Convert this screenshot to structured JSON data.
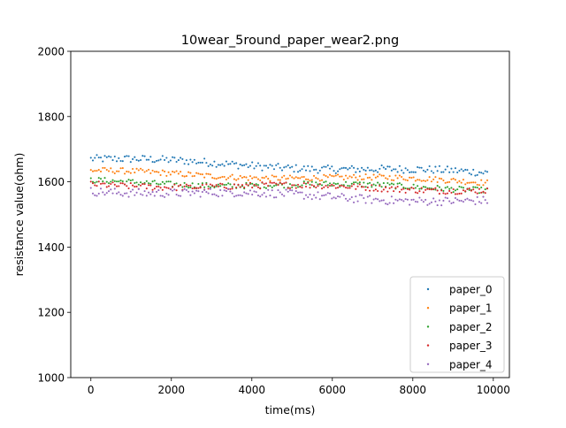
{
  "chart_data": {
    "type": "scatter",
    "title": "10wear_5round_paper_wear2.png",
    "xlabel": "time(ms)",
    "ylabel": "resistance value(ohm)",
    "xlim": [
      -500,
      10400
    ],
    "ylim": [
      1000,
      2000
    ],
    "x_ticks": [
      0,
      2000,
      4000,
      6000,
      8000,
      10000
    ],
    "y_ticks": [
      1000,
      1200,
      1400,
      1600,
      1800,
      2000
    ],
    "x_tick_labels": [
      "0",
      "2000",
      "4000",
      "6000",
      "8000",
      "10000"
    ],
    "y_tick_labels": [
      "1000",
      "1200",
      "1400",
      "1600",
      "1800",
      "2000"
    ],
    "grid": false,
    "legend_position": "lower right",
    "x_range": [
      0,
      9850
    ],
    "point_count": 200,
    "series": [
      {
        "name": "paper_0",
        "color": "#1f77b4",
        "start": 1670,
        "end": 1625,
        "noise": 12
      },
      {
        "name": "paper_1",
        "color": "#ff7f0e",
        "start": 1630,
        "end": 1600,
        "noise": 9
      },
      {
        "name": "paper_2",
        "color": "#2ca02c",
        "start": 1600,
        "end": 1580,
        "noise": 9
      },
      {
        "name": "paper_3",
        "color": "#d62728",
        "start": 1592,
        "end": 1577,
        "noise": 10
      },
      {
        "name": "paper_4",
        "color": "#9467bd",
        "start": 1575,
        "end": 1540,
        "noise": 13
      }
    ]
  }
}
